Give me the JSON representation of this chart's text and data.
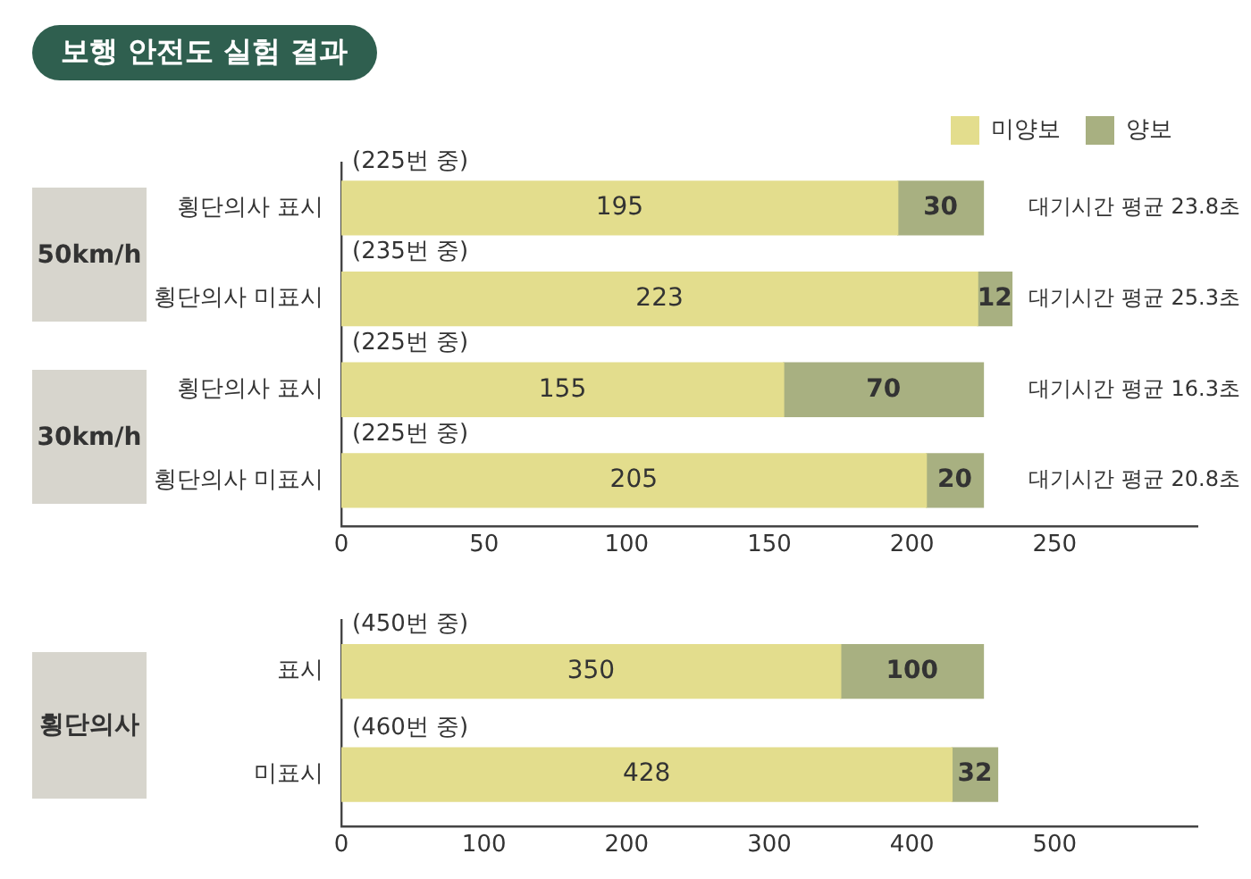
{
  "chart_data": [
    {
      "type": "bar",
      "orientation": "horizontal",
      "stacked": true,
      "title": "보행 안전도 실험 결과",
      "categories": [
        "횡단의사 표시",
        "횡단의사 미표시",
        "횡단의사 표시",
        "횡단의사 미표시"
      ],
      "series": [
        {
          "name": "미양보",
          "color": "#e3dd8d",
          "values": [
            195,
            223,
            155,
            205
          ]
        },
        {
          "name": "양보",
          "color": "#a8b081",
          "values": [
            30,
            12,
            70,
            20
          ]
        }
      ],
      "xlim": [
        0,
        300
      ],
      "xticks": [
        0,
        50,
        100,
        150,
        200,
        250
      ],
      "data_labels": true,
      "legend": "top right",
      "annotations": [
        "(225번 중)",
        "(235번 중)",
        "(225번 중)",
        "(225번 중)",
        "대기시간 평균 23.8초",
        "대기시간 평균 25.3초",
        "대기시간 평균 16.3초",
        "대기시간 평균 20.8초",
        "50km/h",
        "30km/h"
      ]
    },
    {
      "type": "bar",
      "orientation": "horizontal",
      "stacked": true,
      "categories": [
        "표시",
        "미표시"
      ],
      "series": [
        {
          "color": "#e3dd8d",
          "values": [
            350,
            428
          ]
        },
        {
          "color": "#a8b081",
          "values": [
            100,
            32
          ]
        }
      ],
      "xlim": [
        0,
        600
      ],
      "xticks": [
        0,
        100,
        200,
        300,
        400,
        500
      ],
      "data_labels": true,
      "annotations": [
        "(450번 중)",
        "(460번 중)",
        "횡단의사"
      ]
    }
  ]
}
